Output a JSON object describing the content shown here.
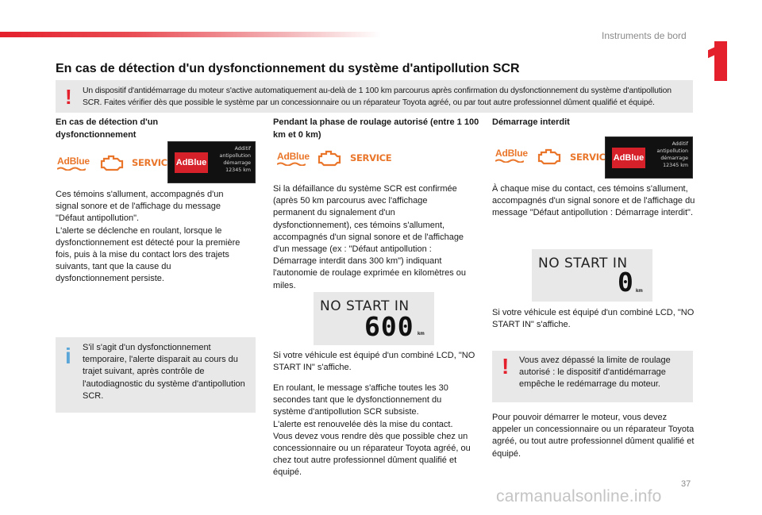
{
  "header": {
    "section_title": "Instruments de bord",
    "chapter_number": "1",
    "accent_color": "#e4202c"
  },
  "title": "En cas de détection d'un dysfonctionnement du système d'antipollution SCR",
  "warning_box": {
    "icon": "warning-exclamation-icon",
    "text": "Un dispositif d'antidémarrage du moteur s'active automatiquement au-delà de 1 100 km parcourus après confirmation du dysfonctionnement du système d'antipollution SCR. Faites vérifier dès que possible le système par un concessionnaire ou un réparateur Toyota agréé, ou par tout autre professionnel dûment qualifié et équipé."
  },
  "lamps": {
    "adblue": "AdBlue",
    "service": "SERVICE",
    "engine_icon": "engine-check-icon"
  },
  "display": {
    "adblue": "AdBlue",
    "line1": "Additif",
    "line2": "antipollution",
    "line3": "démarrage",
    "line4": "12345 km"
  },
  "col1": {
    "heading": "En cas de détection d'un dysfonctionnement",
    "body": "Ces témoins s'allument, accompagnés d'un signal sonore et de l'affichage du message \"Défaut antipollution\".\nL'alerte se déclenche en roulant, lorsque le dysfonctionnement est détecté pour la première fois, puis à la mise du contact lors des trajets suivants, tant que la cause du dysfonctionnement persiste.",
    "info_icon": "info-icon",
    "info_text": "S'il s'agit d'un dysfonctionnement temporaire, l'alerte disparait au cours du trajet suivant, après contrôle de l'autodiagnostic du système d'antipollution SCR."
  },
  "col2": {
    "heading": "Pendant la phase de roulage autorisé (entre 1 100 km et 0 km)",
    "body": "Si la défaillance du système SCR est confirmée (après 50 km parcourus avec l'affichage permanent du signalement d'un dysfonctionnement), ces témoins s'allument, accompagnés d'un signal sonore et de l'affichage d'un message (ex : \"Défaut antipollution : Démarrage interdit dans 300 km\") indiquant l'autonomie de roulage exprimée en kilomètres ou miles.",
    "nostart": {
      "text": "NO START IN",
      "value": "600",
      "unit": "km"
    },
    "caption": "Si votre véhicule est équipé d'un combiné LCD, \"NO START IN\" s'affiche.",
    "body2": "En roulant, le message s'affiche toutes les 30 secondes tant que le dysfonctionnement du système d'antipollution SCR subsiste.\nL'alerte est renouvelée dès la mise du contact.\nVous devez vous rendre dès que possible chez un concessionnaire ou un réparateur Toyota agréé, ou chez tout autre professionnel dûment qualifié et équipé."
  },
  "col3": {
    "heading": "Démarrage interdit",
    "body": "À chaque mise du contact, ces témoins s'allument, accompagnés d'un signal sonore et de l'affichage du message \"Défaut antipollution : Démarrage interdit\".",
    "nostart": {
      "text": "NO START IN",
      "value": "0",
      "unit": "km"
    },
    "caption": "Si votre véhicule est équipé d'un combiné LCD, \"NO START IN\" s'affiche.",
    "warn_icon": "warning-exclamation-icon",
    "warn_text": "Vous avez dépassé la limite de roulage autorisé : le dispositif d'antidémarrage empêche le redémarrage du moteur.",
    "body2": "Pour pouvoir démarrer le moteur, vous devez appeler un concessionnaire ou un réparateur Toyota agréé, ou tout autre professionnel dûment qualifié et équipé."
  },
  "footer": {
    "page_number": "37",
    "watermark": "carmanualsonline.info"
  }
}
